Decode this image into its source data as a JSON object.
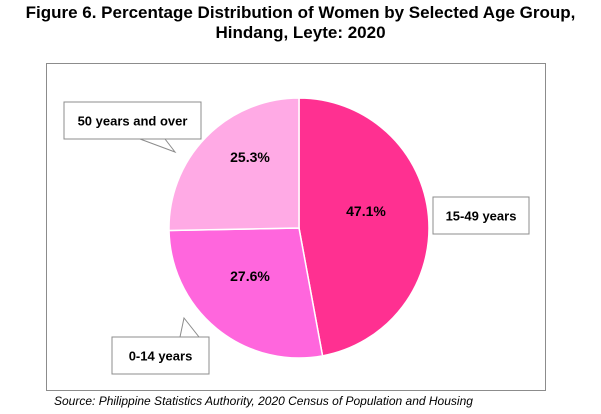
{
  "title": {
    "line1": "Figure 6. Percentage Distribution of Women by Selected Age Group,",
    "line2": "Hindang, Leyte: 2020"
  },
  "source": "Source: Philippine Statistics Authority, 2020 Census of Population and Housing",
  "chart_data": {
    "type": "pie",
    "title": "Figure 6. Percentage Distribution of Women by Selected Age Group, Hindang, Leyte: 2020",
    "categories": [
      "15-49 years",
      "0-14 years",
      "50 years and over"
    ],
    "values": [
      47.1,
      27.6,
      25.3
    ],
    "value_labels": [
      "47.1%",
      "27.6%",
      "25.3%"
    ],
    "colors": [
      "#ff3091",
      "#ff66dd",
      "#ffaae5"
    ],
    "start_angle_deg": 0,
    "direction": "clockwise",
    "legend": "callout labels",
    "source": "Source: Philippine Statistics Authority, 2020 Census of Population and Housing"
  }
}
